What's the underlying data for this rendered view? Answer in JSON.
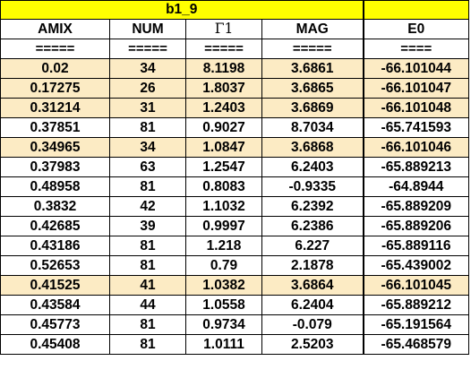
{
  "sheet_title": "b1_9",
  "headers": [
    "AMIX",
    "NUM",
    "Γ1",
    "MAG",
    "E0"
  ],
  "separators": [
    "=====",
    "=====",
    "=====",
    "=====",
    "===="
  ],
  "rows": [
    {
      "amix": "0.02",
      "num": "34",
      "g1": "8.1198",
      "mag": "3.6861",
      "e0": "-66.101044",
      "highlight": true
    },
    {
      "amix": "0.17275",
      "num": "26",
      "g1": "1.8037",
      "mag": "3.6865",
      "e0": "-66.101047",
      "highlight": true
    },
    {
      "amix": "0.31214",
      "num": "31",
      "g1": "1.2403",
      "mag": "3.6869",
      "e0": "-66.101048",
      "highlight": true
    },
    {
      "amix": "0.37851",
      "num": "81",
      "g1": "0.9027",
      "mag": "8.7034",
      "e0": "-65.741593",
      "highlight": false
    },
    {
      "amix": "0.34965",
      "num": "34",
      "g1": "1.0847",
      "mag": "3.6868",
      "e0": "-66.101046",
      "highlight": true
    },
    {
      "amix": "0.37983",
      "num": "63",
      "g1": "1.2547",
      "mag": "6.2403",
      "e0": "-65.889213",
      "highlight": false
    },
    {
      "amix": "0.48958",
      "num": "81",
      "g1": "0.8083",
      "mag": "-0.9335",
      "e0": "-64.8944",
      "highlight": false
    },
    {
      "amix": "0.3832",
      "num": "42",
      "g1": "1.1032",
      "mag": "6.2392",
      "e0": "-65.889209",
      "highlight": false
    },
    {
      "amix": "0.42685",
      "num": "39",
      "g1": "0.9997",
      "mag": "6.2386",
      "e0": "-65.889206",
      "highlight": false
    },
    {
      "amix": "0.43186",
      "num": "81",
      "g1": "1.218",
      "mag": "6.227",
      "e0": "-65.889116",
      "highlight": false
    },
    {
      "amix": "0.52653",
      "num": "81",
      "g1": "0.79",
      "mag": "2.1878",
      "e0": "-65.439002",
      "highlight": false
    },
    {
      "amix": "0.41525",
      "num": "41",
      "g1": "1.0382",
      "mag": "3.6864",
      "e0": "-66.101045",
      "highlight": true
    },
    {
      "amix": "0.43584",
      "num": "44",
      "g1": "1.0558",
      "mag": "6.2404",
      "e0": "-65.889212",
      "highlight": false
    },
    {
      "amix": "0.45773",
      "num": "81",
      "g1": "0.9734",
      "mag": "-0.079",
      "e0": "-65.191564",
      "highlight": false
    },
    {
      "amix": "0.45408",
      "num": "81",
      "g1": "1.0111",
      "mag": "2.5203",
      "e0": "-65.468579",
      "highlight": false
    }
  ],
  "colors": {
    "title_fill": "#ffff00",
    "highlight_fill": "#fcebc4",
    "grid": "#000000"
  }
}
